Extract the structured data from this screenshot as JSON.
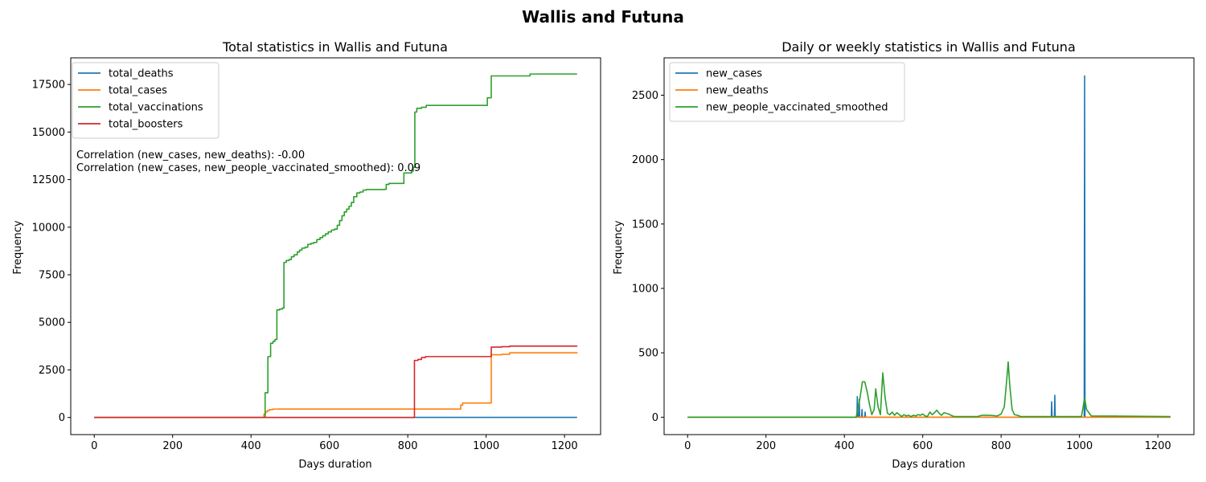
{
  "figure": {
    "suptitle": "Wallis and Futuna"
  },
  "chart_data": [
    {
      "type": "line",
      "title": "Total statistics in Wallis and Futuna",
      "xlabel": "Days duration",
      "ylabel": "Frequency",
      "xlim": [
        -60,
        1292
      ],
      "ylim": [
        -900,
        18900
      ],
      "xticks": [
        0,
        200,
        400,
        600,
        800,
        1000,
        1200
      ],
      "yticks": [
        0,
        2500,
        5000,
        7500,
        10000,
        12500,
        15000,
        17500
      ],
      "legend_position": "upper-left",
      "annotations": [
        "Correlation (new_cases, new_deaths): -0.00",
        "Correlation (new_cases, new_people_vaccinated_smoothed): 0.09"
      ],
      "series": [
        {
          "name": "total_deaths",
          "color": "#1f77b4",
          "step": true,
          "points": [
            [
              0,
              0
            ],
            [
              813,
              0
            ],
            [
              813,
              7
            ],
            [
              1232,
              7
            ]
          ]
        },
        {
          "name": "total_cases",
          "color": "#ff7f0e",
          "step": true,
          "points": [
            [
              0,
              0
            ],
            [
              430,
              0
            ],
            [
              433,
              180
            ],
            [
              437,
              300
            ],
            [
              442,
              370
            ],
            [
              447,
              410
            ],
            [
              455,
              440
            ],
            [
              470,
              445
            ],
            [
              930,
              445
            ],
            [
              935,
              650
            ],
            [
              940,
              760
            ],
            [
              1013,
              760
            ],
            [
              1013,
              3300
            ],
            [
              1040,
              3320
            ],
            [
              1060,
              3400
            ],
            [
              1232,
              3420
            ]
          ]
        },
        {
          "name": "total_vaccinations",
          "color": "#2ca02c",
          "step": true,
          "points": [
            [
              0,
              0
            ],
            [
              434,
              0
            ],
            [
              436,
              1300
            ],
            [
              443,
              3200
            ],
            [
              450,
              3900
            ],
            [
              456,
              4000
            ],
            [
              461,
              4100
            ],
            [
              466,
              5650
            ],
            [
              473,
              5700
            ],
            [
              480,
              5750
            ],
            [
              484,
              8150
            ],
            [
              490,
              8250
            ],
            [
              497,
              8300
            ],
            [
              503,
              8450
            ],
            [
              510,
              8550
            ],
            [
              518,
              8700
            ],
            [
              524,
              8800
            ],
            [
              530,
              8900
            ],
            [
              538,
              8950
            ],
            [
              545,
              9100
            ],
            [
              553,
              9150
            ],
            [
              560,
              9200
            ],
            [
              568,
              9350
            ],
            [
              576,
              9450
            ],
            [
              583,
              9550
            ],
            [
              590,
              9650
            ],
            [
              597,
              9750
            ],
            [
              605,
              9850
            ],
            [
              613,
              9900
            ],
            [
              620,
              10100
            ],
            [
              626,
              10350
            ],
            [
              632,
              10600
            ],
            [
              638,
              10800
            ],
            [
              644,
              10950
            ],
            [
              650,
              11100
            ],
            [
              656,
              11300
            ],
            [
              662,
              11600
            ],
            [
              670,
              11800
            ],
            [
              678,
              11850
            ],
            [
              686,
              11950
            ],
            [
              694,
              11980
            ],
            [
              740,
              11990
            ],
            [
              745,
              12250
            ],
            [
              752,
              12300
            ],
            [
              788,
              12300
            ],
            [
              790,
              12850
            ],
            [
              805,
              12850
            ],
            [
              810,
              12950
            ],
            [
              814,
              13150
            ],
            [
              818,
              16050
            ],
            [
              823,
              16250
            ],
            [
              835,
              16300
            ],
            [
              847,
              16400
            ],
            [
              1000,
              16400
            ],
            [
              1003,
              16800
            ],
            [
              1013,
              16800
            ],
            [
              1013,
              17950
            ],
            [
              1112,
              17950
            ],
            [
              1112,
              18050
            ],
            [
              1232,
              18050
            ]
          ]
        },
        {
          "name": "total_boosters",
          "color": "#d62728",
          "step": true,
          "points": [
            [
              0,
              0
            ],
            [
              812,
              0
            ],
            [
              817,
              3000
            ],
            [
              826,
              3050
            ],
            [
              835,
              3150
            ],
            [
              845,
              3200
            ],
            [
              1013,
              3200
            ],
            [
              1013,
              3700
            ],
            [
              1040,
              3720
            ],
            [
              1060,
              3750
            ],
            [
              1232,
              3760
            ]
          ]
        }
      ]
    },
    {
      "type": "line",
      "title": "Daily or weekly statistics in Wallis and Futuna",
      "xlabel": "Days duration",
      "ylabel": "Frequency",
      "xlim": [
        -60,
        1292
      ],
      "ylim": [
        -135,
        2790
      ],
      "xticks": [
        0,
        200,
        400,
        600,
        800,
        1000,
        1200
      ],
      "yticks": [
        0,
        500,
        1000,
        1500,
        2000,
        2500
      ],
      "legend_position": "upper-left",
      "series": [
        {
          "name": "new_cases",
          "color": "#1f77b4",
          "step": false,
          "points": [
            [
              0,
              0
            ],
            [
              432,
              0
            ],
            [
              433,
              160
            ],
            [
              434,
              0
            ],
            [
              437,
              0
            ],
            [
              438,
              140
            ],
            [
              439,
              0
            ],
            [
              444,
              0
            ],
            [
              445,
              60
            ],
            [
              446,
              0
            ],
            [
              452,
              0
            ],
            [
              453,
              40
            ],
            [
              454,
              0
            ],
            [
              928,
              0
            ],
            [
              929,
              120
            ],
            [
              930,
              0
            ],
            [
              936,
              0
            ],
            [
              937,
              170
            ],
            [
              938,
              0
            ],
            [
              1012,
              0
            ],
            [
              1013,
              2650
            ],
            [
              1014,
              0
            ],
            [
              1090,
              0
            ],
            [
              1091,
              10
            ],
            [
              1092,
              0
            ],
            [
              1232,
              0
            ]
          ]
        },
        {
          "name": "new_deaths",
          "color": "#ff7f0e",
          "step": false,
          "points": [
            [
              0,
              0
            ],
            [
              1232,
              0
            ]
          ]
        },
        {
          "name": "new_people_vaccinated_smoothed",
          "color": "#2ca02c",
          "step": false,
          "points": [
            [
              0,
              0
            ],
            [
              430,
              0
            ],
            [
              440,
              150
            ],
            [
              446,
              275
            ],
            [
              452,
              275
            ],
            [
              458,
              200
            ],
            [
              464,
              100
            ],
            [
              470,
              20
            ],
            [
              476,
              60
            ],
            [
              480,
              220
            ],
            [
              486,
              80
            ],
            [
              492,
              20
            ],
            [
              498,
              345
            ],
            [
              504,
              150
            ],
            [
              510,
              30
            ],
            [
              516,
              20
            ],
            [
              522,
              40
            ],
            [
              528,
              15
            ],
            [
              534,
              35
            ],
            [
              540,
              20
            ],
            [
              546,
              5
            ],
            [
              552,
              20
            ],
            [
              558,
              10
            ],
            [
              564,
              15
            ],
            [
              570,
              5
            ],
            [
              576,
              15
            ],
            [
              582,
              10
            ],
            [
              588,
              20
            ],
            [
              594,
              15
            ],
            [
              600,
              25
            ],
            [
              606,
              10
            ],
            [
              612,
              5
            ],
            [
              618,
              40
            ],
            [
              624,
              20
            ],
            [
              630,
              35
            ],
            [
              636,
              55
            ],
            [
              642,
              30
            ],
            [
              648,
              15
            ],
            [
              654,
              35
            ],
            [
              660,
              30
            ],
            [
              666,
              25
            ],
            [
              672,
              15
            ],
            [
              680,
              5
            ],
            [
              700,
              5
            ],
            [
              740,
              5
            ],
            [
              750,
              15
            ],
            [
              770,
              15
            ],
            [
              790,
              10
            ],
            [
              800,
              25
            ],
            [
              808,
              80
            ],
            [
              814,
              280
            ],
            [
              818,
              430
            ],
            [
              822,
              250
            ],
            [
              828,
              60
            ],
            [
              834,
              20
            ],
            [
              842,
              15
            ],
            [
              850,
              5
            ],
            [
              1005,
              5
            ],
            [
              1013,
              150
            ],
            [
              1018,
              60
            ],
            [
              1030,
              10
            ],
            [
              1232,
              5
            ]
          ]
        }
      ]
    }
  ]
}
